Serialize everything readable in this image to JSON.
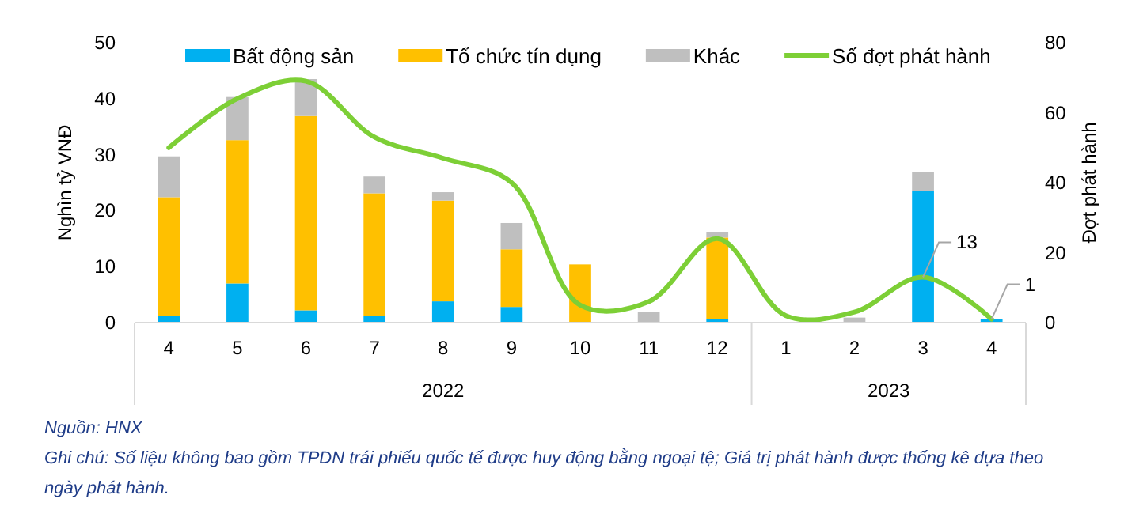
{
  "chart_data": {
    "type": "bar",
    "stacked": true,
    "legend": "top",
    "categories": [
      "4",
      "5",
      "6",
      "7",
      "8",
      "9",
      "10",
      "11",
      "12",
      "1",
      "2",
      "3",
      "4"
    ],
    "series": [
      {
        "name": "Bất động sản",
        "color": "#00b0f0",
        "values": [
          1.2,
          7.0,
          2.2,
          1.2,
          3.8,
          2.8,
          0,
          0,
          0.6,
          0,
          null,
          23.5,
          0.7
        ]
      },
      {
        "name": "Tổ chức tín dụng",
        "color": "#ffc000",
        "values": [
          21.2,
          25.6,
          34.7,
          21.9,
          18.0,
          10.3,
          10.4,
          0,
          14.6,
          0,
          0,
          0,
          0
        ]
      },
      {
        "name": "Khác",
        "color": "#bfbfbf",
        "values": [
          7.3,
          7.7,
          6.6,
          3.0,
          1.5,
          4.7,
          null,
          1.9,
          0.9,
          0,
          0.9,
          3.4,
          0
        ]
      },
      {
        "name": "Số đợt phát hành",
        "type": "line",
        "axis": "y2",
        "color": "#7dcf36",
        "values": [
          50,
          64,
          69,
          53,
          47,
          40,
          5,
          6,
          24,
          2,
          3,
          13,
          1
        ],
        "value_labels": [
          null,
          null,
          null,
          null,
          null,
          null,
          null,
          null,
          null,
          null,
          null,
          "13",
          "1"
        ]
      }
    ],
    "ylabel": "Nghìn tỷ VNĐ",
    "y2label": "Đợt phát hành",
    "ylim": [
      0,
      50
    ],
    "yticks": [
      0,
      10,
      20,
      30,
      40,
      50
    ],
    "y2lim": [
      0,
      80
    ],
    "y2ticks": [
      0,
      20,
      40,
      60,
      80
    ],
    "annotations": [
      "2022",
      "2023",
      "Nguồn: HNX",
      "Ghi chú: Số liệu không bao gồm TPDN trái phiếu quốc tế được huy động bằng ngoại tệ; Giá trị phát hành được thống kê dựa theo ngày phát hành."
    ]
  }
}
